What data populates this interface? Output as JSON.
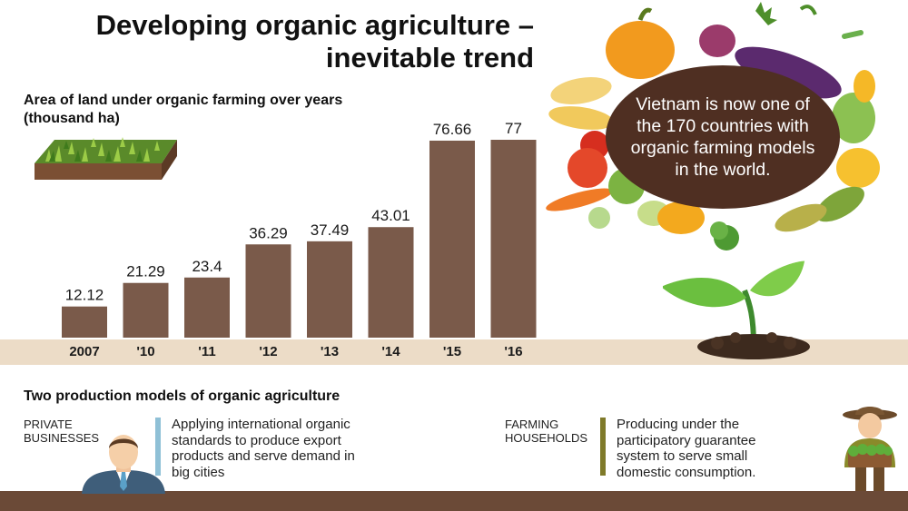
{
  "title_line1": "Developing organic agriculture –",
  "title_line2": "inevitable trend",
  "chart_data": {
    "type": "bar",
    "title": "Area of land under organic farming over years",
    "unit": "(thousand ha)",
    "categories": [
      "2007",
      "'10",
      "'11",
      "'12",
      "'13",
      "'14",
      "'15",
      "'16"
    ],
    "values": [
      12.12,
      21.29,
      23.4,
      36.29,
      37.49,
      43.01,
      76.66,
      77
    ],
    "value_labels": [
      "12.12",
      "21.29",
      "23.4",
      "36.29",
      "37.49",
      "43.01",
      "76.66",
      "77"
    ],
    "bar_color": "#7a5a4a"
  },
  "bubble_text": "Vietnam is now one of the 170 countries with organic farming models in the world.",
  "models": {
    "heading": "Two production models of organic agriculture",
    "private": {
      "name_line1": "PRIVATE",
      "name_line2": "BUSINESSES",
      "desc": [
        "Applying international organic",
        "standards to produce export",
        "products and serve demand in",
        "big cities"
      ],
      "accent": "#8fc0d6"
    },
    "households": {
      "name_line1": "FARMING",
      "name_line2": "HOUSEHOLDS",
      "desc": [
        "Producing under the",
        "participatory guarantee",
        "system to serve small",
        "domestic consumption."
      ],
      "accent": "#7f7a2a"
    }
  },
  "colors": {
    "bubble": "#4f2f22",
    "ground": "#6b4a37",
    "band": "#ecdcc7"
  }
}
